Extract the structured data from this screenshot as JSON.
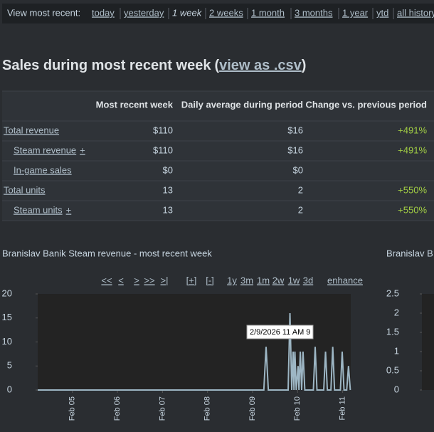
{
  "nav": {
    "label": "View most recent:",
    "links": [
      "today",
      "yesterday",
      "1 week",
      "2 weeks",
      "1 month",
      "3 months",
      "1 year",
      "ytd",
      "all history"
    ],
    "current": 2
  },
  "heading": {
    "text": "Sales during most recent week",
    "open": "(",
    "link": "view as .csv",
    "close": ")"
  },
  "table": {
    "columns": [
      "Most recent week",
      "Daily average during period",
      "Change vs. previous period"
    ],
    "rows": [
      {
        "label": "Total revenue",
        "cells": [
          "$110",
          "$16",
          "+491%"
        ]
      },
      {
        "label": "Steam revenue",
        "expand": "+",
        "indent": true,
        "cells": [
          "$110",
          "$16",
          "+491%"
        ]
      },
      {
        "label": "In-game sales",
        "indent": true,
        "cells": [
          "$0",
          "$0"
        ]
      },
      {
        "label": "Total units",
        "cells": [
          "13",
          "2",
          "+550%"
        ]
      },
      {
        "label": "Steam units",
        "expand": "+",
        "indent": true,
        "cells": [
          "13",
          "2",
          "+550%"
        ]
      }
    ]
  },
  "charts": [
    {
      "type": "line",
      "title": "Branislav Banik Steam revenue - most recent week",
      "controls": [
        "<<",
        "<",
        ">",
        ">>",
        ">|",
        "[+]",
        "[-]",
        "1y",
        "3m",
        "1m",
        "2w",
        "1w",
        "3d",
        "enhance"
      ],
      "tooltip": "2/9/2026 11 AM 9",
      "x": [
        4.23,
        9.25,
        9.3,
        9.35,
        9.79,
        9.83,
        9.87,
        9.9,
        9.92,
        9.94,
        9.97,
        10.01,
        10.03,
        10.06,
        10.09,
        10.12,
        10.16,
        10.35,
        10.39,
        10.43,
        10.58,
        10.62,
        10.66,
        10.74,
        10.78,
        10.82,
        10.95,
        10.99,
        11.03,
        11.09,
        11.13,
        11.17
      ],
      "series": [
        {
          "color": "#9db6c4",
          "values": [
            0,
            0,
            9,
            0,
            0,
            16,
            0,
            8,
            0,
            8,
            0,
            5,
            0,
            8,
            0,
            8,
            0,
            0,
            9,
            0,
            0,
            8,
            0,
            0,
            9,
            0,
            0,
            8,
            0,
            0,
            5,
            0
          ]
        }
      ],
      "xlim": [
        4.23,
        11.18
      ],
      "ylim": [
        0,
        20
      ],
      "yticks": [
        0,
        5,
        10,
        15,
        20
      ],
      "xticks": [
        {
          "value": 5,
          "label": "Feb 05"
        },
        {
          "value": 6,
          "label": "Feb 06"
        },
        {
          "value": 7,
          "label": "Feb 07"
        },
        {
          "value": 8,
          "label": "Feb 08"
        },
        {
          "value": 9,
          "label": "Feb 09"
        },
        {
          "value": 10,
          "label": "Feb 10"
        },
        {
          "value": 11,
          "label": "Feb 11"
        }
      ]
    },
    {
      "type": "line",
      "title": "Branislav B",
      "ylim": [
        0,
        2.5
      ],
      "yticks": [
        0,
        0.5,
        1,
        1.5,
        2,
        2.5
      ]
    }
  ]
}
